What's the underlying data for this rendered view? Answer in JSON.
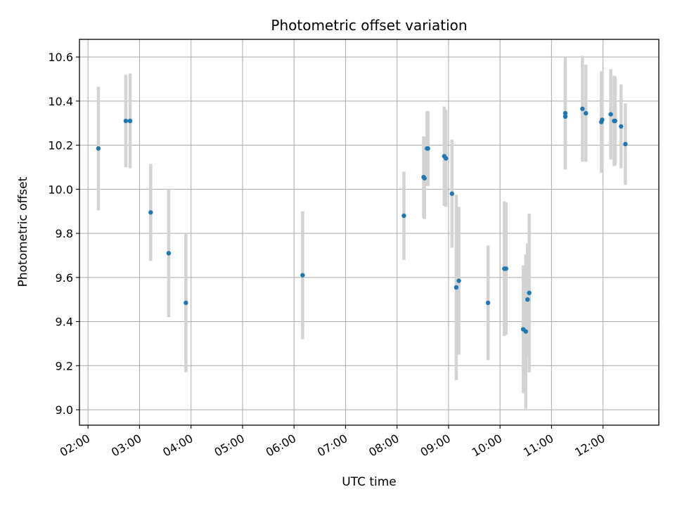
{
  "chart_data": {
    "type": "scatter",
    "title": "Photometric offset variation",
    "xlabel": "UTC time",
    "ylabel": "Photometric offset",
    "x_tick_labels": [
      "02:00",
      "03:00",
      "04:00",
      "05:00",
      "06:00",
      "07:00",
      "08:00",
      "09:00",
      "10:00",
      "11:00",
      "12:00"
    ],
    "y_tick_labels": [
      "9.0",
      "9.2",
      "9.4",
      "9.6",
      "9.8",
      "10.0",
      "10.2",
      "10.4",
      "10.6"
    ],
    "xlim": [
      "01:50",
      "13:05"
    ],
    "ylim": [
      8.93,
      10.68
    ],
    "grid": true,
    "colors": {
      "marker": "#1f77b4",
      "errorbar": "#d3d3d3",
      "grid": "#b0b0b0"
    },
    "points": [
      {
        "x": "02:12",
        "y": 10.185,
        "err": 0.28
      },
      {
        "x": "02:44",
        "y": 10.31,
        "err": 0.21
      },
      {
        "x": "02:49",
        "y": 10.31,
        "err": 0.215
      },
      {
        "x": "03:13",
        "y": 9.895,
        "err": 0.22
      },
      {
        "x": "03:34",
        "y": 9.71,
        "err": 0.29
      },
      {
        "x": "03:54",
        "y": 9.485,
        "err": 0.315
      },
      {
        "x": "06:10",
        "y": 9.61,
        "err": 0.29
      },
      {
        "x": "08:08",
        "y": 9.88,
        "err": 0.2
      },
      {
        "x": "08:31",
        "y": 10.055,
        "err": 0.185
      },
      {
        "x": "08:32",
        "y": 10.05,
        "err": 0.185
      },
      {
        "x": "08:35",
        "y": 10.185,
        "err": 0.17
      },
      {
        "x": "08:36",
        "y": 10.185,
        "err": 0.17
      },
      {
        "x": "08:55",
        "y": 10.15,
        "err": 0.225
      },
      {
        "x": "08:57",
        "y": 10.14,
        "err": 0.22
      },
      {
        "x": "09:04",
        "y": 9.98,
        "err": 0.245
      },
      {
        "x": "09:09",
        "y": 9.555,
        "err": 0.42
      },
      {
        "x": "09:12",
        "y": 9.585,
        "err": 0.335
      },
      {
        "x": "09:46",
        "y": 9.485,
        "err": 0.26
      },
      {
        "x": "10:05",
        "y": 9.64,
        "err": 0.305
      },
      {
        "x": "10:07",
        "y": 9.64,
        "err": 0.3
      },
      {
        "x": "10:27",
        "y": 9.365,
        "err": 0.29
      },
      {
        "x": "10:30",
        "y": 9.355,
        "err": 0.35
      },
      {
        "x": "10:32",
        "y": 9.5,
        "err": 0.255
      },
      {
        "x": "10:34",
        "y": 9.53,
        "err": 0.36
      },
      {
        "x": "11:16",
        "y": 10.345,
        "err": 0.255
      },
      {
        "x": "11:16",
        "y": 10.33,
        "err": 0.24
      },
      {
        "x": "11:36",
        "y": 10.365,
        "err": 0.24
      },
      {
        "x": "11:40",
        "y": 10.345,
        "err": 0.22
      },
      {
        "x": "11:58",
        "y": 10.305,
        "err": 0.23
      },
      {
        "x": "11:59",
        "y": 10.315,
        "err": 0.22
      },
      {
        "x": "12:09",
        "y": 10.34,
        "err": 0.205
      },
      {
        "x": "12:13",
        "y": 10.31,
        "err": 0.205
      },
      {
        "x": "12:14",
        "y": 10.31,
        "err": 0.2
      },
      {
        "x": "12:21",
        "y": 10.285,
        "err": 0.19
      },
      {
        "x": "12:26",
        "y": 10.205,
        "err": 0.185
      }
    ]
  }
}
